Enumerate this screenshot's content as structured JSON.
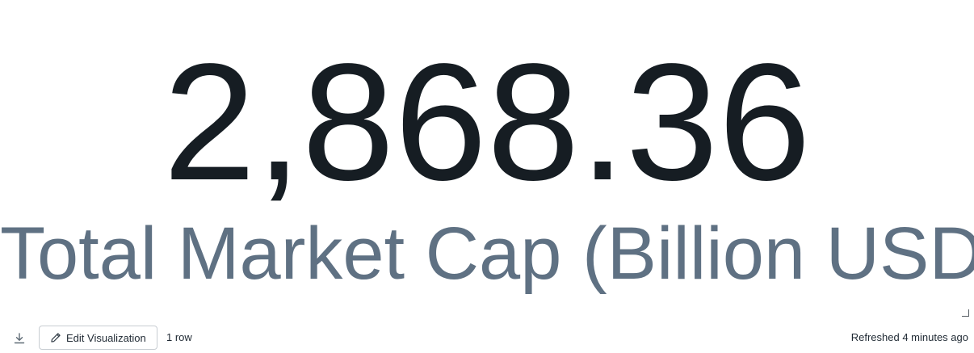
{
  "counter": {
    "value": "2,868.36",
    "label": "Total Market Cap (Billion USD)"
  },
  "footer": {
    "download_icon": "download-icon",
    "edit_label": "Edit Visualization",
    "edit_icon": "pencil-icon",
    "row_count": "1 row",
    "refreshed": "Refreshed 4 minutes ago"
  },
  "colors": {
    "value": "#161d23",
    "label": "#5f7183",
    "button_border": "#c8cdd2",
    "text": "#1f2933"
  }
}
